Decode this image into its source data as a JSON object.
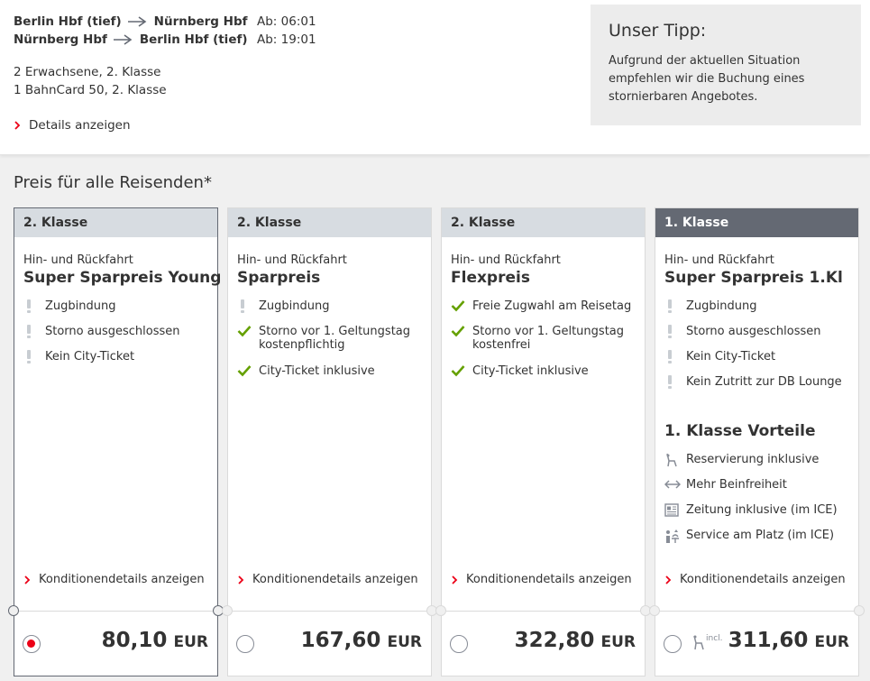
{
  "journey": {
    "outbound": {
      "from": "Berlin Hbf (tief)",
      "to": "Nürnberg Hbf",
      "departure": "Ab: 06:01"
    },
    "return": {
      "from": "Nürnberg Hbf",
      "to": "Berlin Hbf (tief)",
      "departure": "Ab: 19:01"
    },
    "passengers": "2 Erwachsene, 2. Klasse",
    "bahncard": "1 BahnCard 50, 2. Klasse",
    "details_link": "Details anzeigen"
  },
  "tip": {
    "title": "Unser Tipp:",
    "text": "Aufgrund der aktuellen Situation empfehlen wir die Buchung eines stornierbaren Angebotes."
  },
  "price_heading": "Preis für alle Reisenden*",
  "cards": [
    {
      "class_label": "2. Klasse",
      "trip_type": "Hin- und Rückfahrt",
      "fare_name": "Super Sparpreis Young",
      "features": [
        {
          "icon": "exclamation-icon",
          "text": "Zugbindung"
        },
        {
          "icon": "exclamation-icon",
          "text": "Storno ausgeschlossen"
        },
        {
          "icon": "exclamation-icon",
          "text": "Kein City-Ticket"
        }
      ],
      "conditions_link": "Konditionendetails anzeigen",
      "price": "80,10",
      "currency": "EUR",
      "selected": true
    },
    {
      "class_label": "2. Klasse",
      "trip_type": "Hin- und Rückfahrt",
      "fare_name": "Sparpreis",
      "features": [
        {
          "icon": "exclamation-icon",
          "text": "Zugbindung"
        },
        {
          "icon": "checkmark-icon",
          "text": "Storno vor 1. Geltungstag kostenpflichtig"
        },
        {
          "icon": "checkmark-icon",
          "text": "City-Ticket inklusive"
        }
      ],
      "conditions_link": "Konditionendetails anzeigen",
      "price": "167,60",
      "currency": "EUR",
      "selected": false
    },
    {
      "class_label": "2. Klasse",
      "trip_type": "Hin- und Rückfahrt",
      "fare_name": "Flexpreis",
      "features": [
        {
          "icon": "checkmark-icon",
          "text": "Freie Zugwahl am Reisetag"
        },
        {
          "icon": "checkmark-icon",
          "text": "Storno vor 1. Geltungstag kostenfrei"
        },
        {
          "icon": "checkmark-icon",
          "text": "City-Ticket inklusive"
        }
      ],
      "conditions_link": "Konditionendetails anzeigen",
      "price": "322,80",
      "currency": "EUR",
      "selected": false
    },
    {
      "class_label": "1. Klasse",
      "trip_type": "Hin- und Rückfahrt",
      "fare_name": "Super Sparpreis 1.Kl",
      "features": [
        {
          "icon": "exclamation-icon",
          "text": "Zugbindung"
        },
        {
          "icon": "exclamation-icon",
          "text": "Storno ausgeschlossen"
        },
        {
          "icon": "exclamation-icon",
          "text": "Kein City-Ticket"
        },
        {
          "icon": "exclamation-icon",
          "text": "Kein Zutritt zur DB Lounge"
        }
      ],
      "advantages_title": "1. Klasse Vorteile",
      "advantages": [
        {
          "icon": "seat-icon",
          "text": "Reservierung inklusive"
        },
        {
          "icon": "legroom-arrow-icon",
          "text": "Mehr Beinfreiheit"
        },
        {
          "icon": "newspaper-icon",
          "text": "Zeitung inklusive (im ICE)"
        },
        {
          "icon": "seat-service-icon",
          "text": "Service am Platz (im ICE)"
        }
      ],
      "conditions_link": "Konditionendetails anzeigen",
      "incl_label": "incl.",
      "price": "311,60",
      "currency": "EUR",
      "selected": false
    }
  ],
  "colors": {
    "accent": "#ec0016",
    "check": "#64a000",
    "dark_header": "#646973",
    "light_header": "#d7dce1"
  }
}
